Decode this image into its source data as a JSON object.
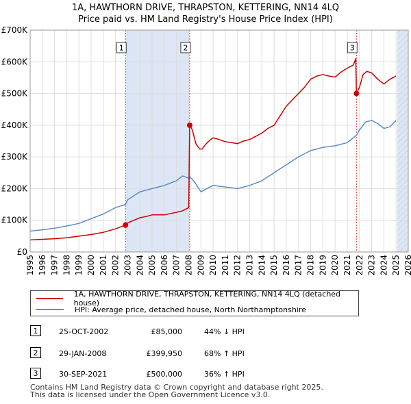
{
  "title": {
    "line1": "1A, HAWTHORN DRIVE, THRAPSTON, KETTERING, NN14 4LQ",
    "line2": "Price paid vs. HM Land Registry's House Price Index (HPI)"
  },
  "legend": {
    "series1": "1A, HAWTHORN DRIVE, THRAPSTON, KETTERING, NN14 4LQ (detached house)",
    "series2": "HPI: Average price, detached house, North Northamptonshire"
  },
  "transactions": [
    {
      "num": "1",
      "date": "25-OCT-2002",
      "price": "£85,000",
      "hpi": "44% ↓ HPI"
    },
    {
      "num": "2",
      "date": "29-JAN-2008",
      "price": "£399,950",
      "hpi": "68% ↑ HPI"
    },
    {
      "num": "3",
      "date": "30-SEP-2021",
      "price": "£500,000",
      "hpi": "36% ↑ HPI"
    }
  ],
  "footer": {
    "line1": "Contains HM Land Registry data © Crown copyright and database right 2025.",
    "line2": "This data is licensed under the Open Government Licence v3.0."
  },
  "colors": {
    "property": "#cc0000",
    "hpi": "#5b8cc8",
    "shade": "#dde6f5",
    "grid": "#dddddd",
    "marker_line": "#dd4444"
  },
  "chart_data": {
    "type": "line",
    "xlim": [
      1995,
      2026
    ],
    "ylim": [
      0,
      700000
    ],
    "x_ticks": [
      "1995",
      "1996",
      "1997",
      "1998",
      "1999",
      "2000",
      "2001",
      "2002",
      "2003",
      "2004",
      "2005",
      "2006",
      "2007",
      "2008",
      "2009",
      "2010",
      "2011",
      "2012",
      "2013",
      "2014",
      "2015",
      "2016",
      "2017",
      "2018",
      "2019",
      "2020",
      "2021",
      "2022",
      "2023",
      "2024",
      "2025",
      "2026"
    ],
    "y_ticks": [
      {
        "value": 0,
        "label": "£0"
      },
      {
        "value": 100000,
        "label": "£100K"
      },
      {
        "value": 200000,
        "label": "£200K"
      },
      {
        "value": 300000,
        "label": "£300K"
      },
      {
        "value": 400000,
        "label": "£400K"
      },
      {
        "value": 500000,
        "label": "£500K"
      },
      {
        "value": 600000,
        "label": "£600K"
      },
      {
        "value": 700000,
        "label": "£700K"
      }
    ],
    "shaded_ranges": [
      [
        2002.82,
        2008.08
      ],
      [
        2025.1,
        2026
      ]
    ],
    "hatched_range": [
      2025.1,
      2026
    ],
    "sales": [
      {
        "label": "1",
        "x": 2002.82,
        "y": 85000
      },
      {
        "label": "2",
        "x": 2008.08,
        "y": 399950
      },
      {
        "label": "3",
        "x": 2021.75,
        "y": 500000
      }
    ],
    "series": [
      {
        "name": "1A, HAWTHORN DRIVE, THRAPSTON, KETTERING, NN14 4LQ (detached house)",
        "x": [
          1995,
          1996,
          1997,
          1998,
          1999,
          2000,
          2001,
          2002,
          2002.82,
          2003,
          2003.5,
          2004,
          2004.5,
          2005,
          2006,
          2007,
          2007.5,
          2008.0,
          2008.08,
          2008.3,
          2008.6,
          2008.9,
          2009.1,
          2009.4,
          2009.8,
          2010,
          2010.5,
          2011,
          2011.5,
          2012,
          2012.5,
          2013,
          2013.5,
          2014,
          2014.5,
          2015,
          2015.5,
          2016,
          2016.5,
          2017,
          2017.5,
          2018,
          2018.5,
          2019,
          2019.5,
          2020,
          2020.5,
          2021,
          2021.5,
          2021.7,
          2021.75,
          2022,
          2022.3,
          2022.6,
          2023,
          2023.5,
          2024,
          2024.5,
          2025
        ],
        "y": [
          38000,
          40000,
          42000,
          45000,
          50000,
          55000,
          62000,
          73000,
          85000,
          92000,
          100000,
          108000,
          112000,
          117000,
          117000,
          125000,
          130000,
          140000,
          399950,
          385000,
          340000,
          325000,
          325000,
          340000,
          355000,
          360000,
          355000,
          348000,
          345000,
          342000,
          350000,
          355000,
          365000,
          375000,
          390000,
          400000,
          430000,
          460000,
          480000,
          500000,
          520000,
          545000,
          555000,
          560000,
          555000,
          552000,
          568000,
          580000,
          590000,
          610000,
          500000,
          520000,
          560000,
          570000,
          565000,
          545000,
          530000,
          545000,
          555000
        ]
      },
      {
        "name": "HPI: Average price, detached house, North Northamptonshire",
        "x": [
          1995,
          1996,
          1997,
          1998,
          1999,
          2000,
          2001,
          2002,
          2002.82,
          2003,
          2004,
          2005,
          2006,
          2007,
          2007.5,
          2008.0,
          2008.08,
          2008.5,
          2009,
          2009.5,
          2010,
          2011,
          2012,
          2013,
          2014,
          2015,
          2016,
          2017,
          2017.5,
          2018,
          2019,
          2020,
          2021,
          2021.75,
          2022,
          2022.5,
          2023,
          2023.5,
          2024,
          2024.5,
          2025
        ],
        "y": [
          66000,
          70000,
          75000,
          82000,
          90000,
          105000,
          120000,
          140000,
          150000,
          165000,
          190000,
          200000,
          210000,
          225000,
          240000,
          233000,
          238000,
          220000,
          190000,
          200000,
          210000,
          205000,
          200000,
          210000,
          225000,
          250000,
          275000,
          300000,
          310000,
          320000,
          330000,
          335000,
          345000,
          368000,
          385000,
          410000,
          415000,
          405000,
          390000,
          395000,
          415000
        ]
      }
    ]
  }
}
